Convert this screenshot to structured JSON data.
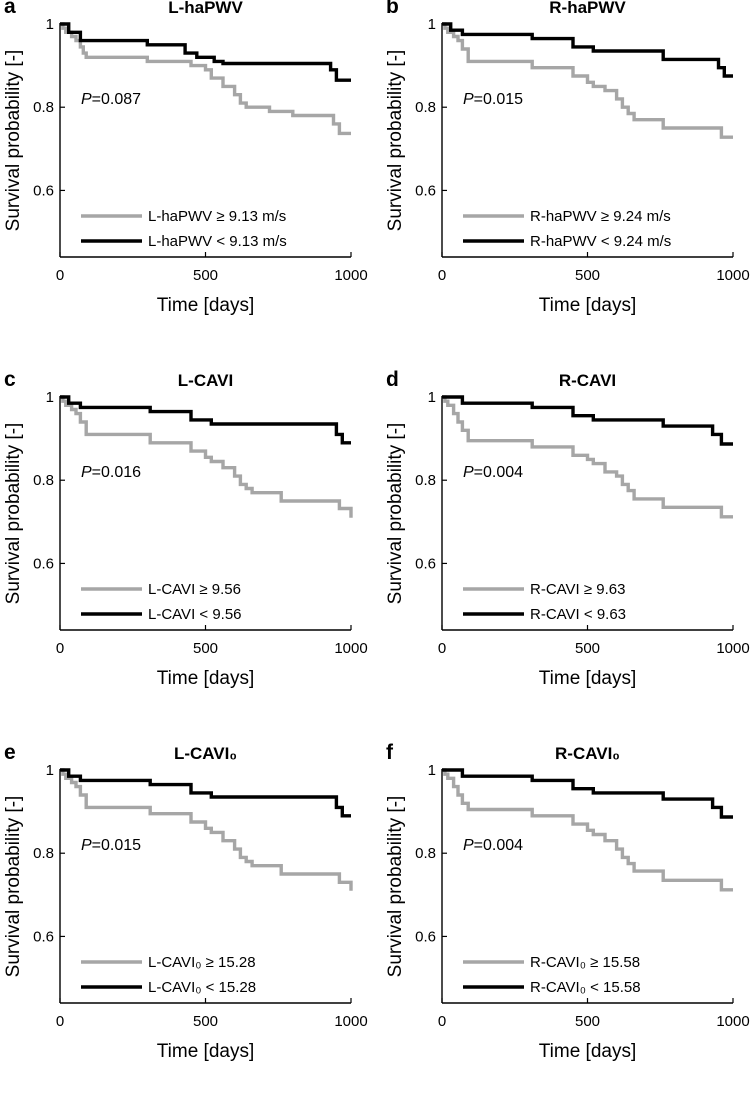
{
  "figure": {
    "y_axis_label": "Survival probability [-]",
    "x_axis_label": "Time [days]",
    "x_ticks": [
      0,
      500,
      1000
    ],
    "y_ticks": [
      0.6,
      0.8,
      1
    ],
    "y_tick_labels": [
      "0.6",
      "0.8",
      "1"
    ],
    "series_colors": {
      "high": "#a6a6a6",
      "low": "#000000"
    }
  },
  "chart_data": [
    {
      "type": "line",
      "panel": "a",
      "title": "L-haPWV",
      "p_value": "0.087",
      "xlabel": "Time [days]",
      "ylabel": "Survival probability [-]",
      "xlim": [
        0,
        1000
      ],
      "ylim": [
        0.44,
        1.0
      ],
      "series": [
        {
          "name": "L-haPWV ≥ 9.13 m/s",
          "color": "#a6a6a6",
          "x": [
            0,
            10,
            20,
            40,
            55,
            70,
            80,
            90,
            300,
            450,
            500,
            520,
            560,
            600,
            620,
            640,
            700,
            720,
            800,
            940,
            960,
            1000
          ],
          "y": [
            1,
            0.99,
            0.98,
            0.97,
            0.96,
            0.945,
            0.93,
            0.92,
            0.91,
            0.9,
            0.89,
            0.87,
            0.85,
            0.83,
            0.81,
            0.8,
            0.8,
            0.79,
            0.78,
            0.76,
            0.737,
            0.737
          ]
        },
        {
          "name": "L-haPWV < 9.13 m/s",
          "color": "#000000",
          "x": [
            0,
            30,
            70,
            300,
            430,
            470,
            530,
            560,
            930,
            950,
            1000
          ],
          "y": [
            1,
            0.98,
            0.96,
            0.95,
            0.93,
            0.92,
            0.91,
            0.905,
            0.89,
            0.865,
            0.865
          ]
        }
      ]
    },
    {
      "type": "line",
      "panel": "b",
      "title": "R-haPWV",
      "p_value": "0.015",
      "xlabel": "Time [days]",
      "ylabel": "Survival probability [-]",
      "xlim": [
        0,
        1000
      ],
      "ylim": [
        0.44,
        1.0
      ],
      "series": [
        {
          "name": "R-haPWV ≥ 9.24 m/s",
          "color": "#a6a6a6",
          "x": [
            0,
            10,
            20,
            40,
            55,
            70,
            90,
            310,
            450,
            500,
            520,
            560,
            600,
            620,
            640,
            660,
            760,
            960,
            1000
          ],
          "y": [
            1,
            0.99,
            0.98,
            0.97,
            0.96,
            0.94,
            0.91,
            0.895,
            0.875,
            0.86,
            0.85,
            0.84,
            0.82,
            0.8,
            0.785,
            0.77,
            0.75,
            0.728,
            0.728
          ]
        },
        {
          "name": "R-haPWV < 9.24 m/s",
          "color": "#000000",
          "x": [
            0,
            30,
            70,
            310,
            450,
            520,
            760,
            950,
            970,
            1000
          ],
          "y": [
            1,
            0.985,
            0.975,
            0.965,
            0.945,
            0.935,
            0.915,
            0.895,
            0.875,
            0.875
          ]
        }
      ]
    },
    {
      "type": "line",
      "panel": "c",
      "title": "L-CAVI",
      "p_value": "0.016",
      "xlabel": "Time [days]",
      "ylabel": "Survival probability [-]",
      "xlim": [
        0,
        1000
      ],
      "ylim": [
        0.44,
        1.0
      ],
      "series": [
        {
          "name": "L-CAVI ≥ 9.56",
          "color": "#a6a6a6",
          "x": [
            0,
            10,
            20,
            40,
            55,
            70,
            90,
            310,
            450,
            500,
            520,
            560,
            600,
            620,
            640,
            660,
            760,
            960,
            1000
          ],
          "y": [
            1,
            0.99,
            0.98,
            0.97,
            0.96,
            0.94,
            0.91,
            0.89,
            0.87,
            0.855,
            0.845,
            0.83,
            0.81,
            0.79,
            0.78,
            0.77,
            0.75,
            0.732,
            0.71
          ]
        },
        {
          "name": "L-CAVI < 9.56",
          "color": "#000000",
          "x": [
            0,
            30,
            70,
            310,
            450,
            520,
            760,
            950,
            970,
            1000
          ],
          "y": [
            1,
            0.985,
            0.975,
            0.965,
            0.945,
            0.935,
            0.935,
            0.91,
            0.89,
            0.89
          ]
        }
      ]
    },
    {
      "type": "line",
      "panel": "d",
      "title": "R-CAVI",
      "p_value": "0.004",
      "xlabel": "Time [days]",
      "ylabel": "Survival probability [-]",
      "xlim": [
        0,
        1000
      ],
      "ylim": [
        0.44,
        1.0
      ],
      "series": [
        {
          "name": "R-CAVI ≥ 9.63",
          "color": "#a6a6a6",
          "x": [
            0,
            10,
            20,
            40,
            55,
            70,
            90,
            310,
            450,
            500,
            520,
            560,
            600,
            620,
            640,
            660,
            760,
            960,
            1000
          ],
          "y": [
            1,
            0.99,
            0.98,
            0.96,
            0.94,
            0.92,
            0.895,
            0.88,
            0.86,
            0.85,
            0.84,
            0.82,
            0.81,
            0.79,
            0.775,
            0.755,
            0.735,
            0.712,
            0.712
          ]
        },
        {
          "name": "R-CAVI < 9.63",
          "color": "#000000",
          "x": [
            0,
            70,
            310,
            450,
            520,
            760,
            930,
            960,
            1000
          ],
          "y": [
            1,
            0.985,
            0.975,
            0.955,
            0.945,
            0.93,
            0.91,
            0.887,
            0.887
          ]
        }
      ]
    },
    {
      "type": "line",
      "panel": "e",
      "title": "L-CAVI₀",
      "p_value": "0.015",
      "xlabel": "Time [days]",
      "ylabel": "Survival probability [-]",
      "xlim": [
        0,
        1000
      ],
      "ylim": [
        0.44,
        1.0
      ],
      "series": [
        {
          "name": "L-CAVI₀ ≥ 15.28",
          "color": "#a6a6a6",
          "x": [
            0,
            10,
            20,
            40,
            55,
            70,
            90,
            310,
            450,
            500,
            520,
            560,
            600,
            620,
            640,
            660,
            760,
            960,
            1000
          ],
          "y": [
            1,
            0.99,
            0.98,
            0.97,
            0.96,
            0.94,
            0.91,
            0.895,
            0.875,
            0.86,
            0.85,
            0.83,
            0.81,
            0.79,
            0.78,
            0.77,
            0.75,
            0.73,
            0.71
          ]
        },
        {
          "name": "L-CAVI₀ < 15.28",
          "color": "#000000",
          "x": [
            0,
            30,
            70,
            310,
            450,
            520,
            760,
            950,
            970,
            1000
          ],
          "y": [
            1,
            0.985,
            0.975,
            0.965,
            0.945,
            0.935,
            0.935,
            0.91,
            0.89,
            0.89
          ]
        }
      ]
    },
    {
      "type": "line",
      "panel": "f",
      "title": "R-CAVI₀",
      "p_value": "0.004",
      "xlabel": "Time [days]",
      "ylabel": "Survival probability [-]",
      "xlim": [
        0,
        1000
      ],
      "ylim": [
        0.44,
        1.0
      ],
      "series": [
        {
          "name": "R-CAVI₀ ≥ 15.58",
          "color": "#a6a6a6",
          "x": [
            0,
            10,
            20,
            40,
            55,
            70,
            90,
            310,
            450,
            500,
            520,
            560,
            600,
            620,
            640,
            660,
            760,
            960,
            1000
          ],
          "y": [
            1,
            0.99,
            0.98,
            0.96,
            0.94,
            0.92,
            0.905,
            0.89,
            0.87,
            0.855,
            0.845,
            0.83,
            0.81,
            0.79,
            0.775,
            0.757,
            0.735,
            0.712,
            0.712
          ]
        },
        {
          "name": "R-CAVI₀ < 15.58",
          "color": "#000000",
          "x": [
            0,
            70,
            310,
            450,
            520,
            760,
            930,
            960,
            1000
          ],
          "y": [
            1,
            0.985,
            0.975,
            0.955,
            0.945,
            0.93,
            0.91,
            0.887,
            0.887
          ]
        }
      ]
    }
  ]
}
